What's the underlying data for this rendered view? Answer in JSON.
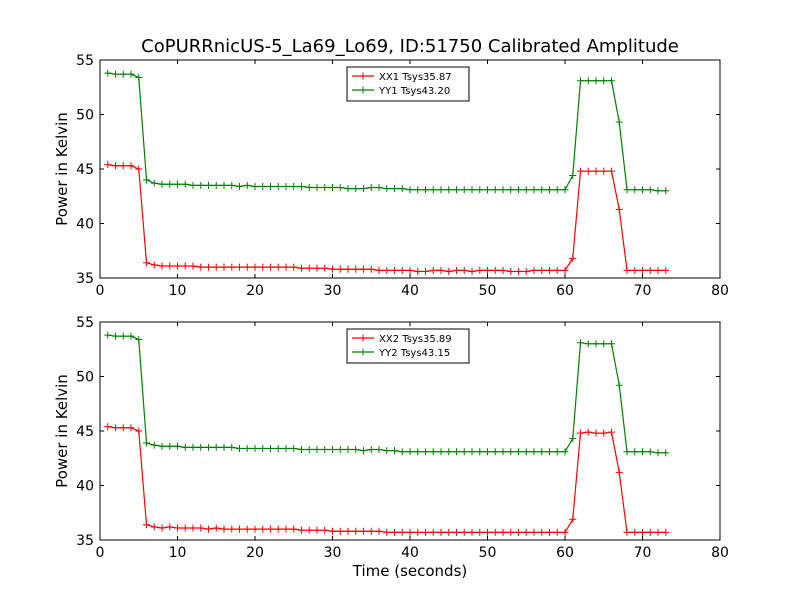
{
  "chart_data": [
    {
      "type": "line",
      "title": "CoPURRnicUS-5_La69_Lo69, ID:51750 Calibrated Amplitude",
      "xlabel": "",
      "ylabel": "Power in Kelvin",
      "xlim": [
        0,
        80
      ],
      "ylim": [
        35,
        55
      ],
      "xticks": [
        "0",
        "10",
        "20",
        "30",
        "40",
        "50",
        "60",
        "70",
        "80"
      ],
      "yticks": [
        "35",
        "40",
        "45",
        "50",
        "55"
      ],
      "grid": false,
      "legend_position": "top-center",
      "series": [
        {
          "name": "XX1 Tsys35.87",
          "color": "#ff0000",
          "x": [
            1,
            2,
            3,
            4,
            5,
            6,
            7,
            8,
            9,
            10,
            11,
            12,
            13,
            14,
            15,
            16,
            17,
            18,
            19,
            20,
            21,
            22,
            23,
            24,
            25,
            26,
            27,
            28,
            29,
            30,
            31,
            32,
            33,
            34,
            35,
            36,
            37,
            38,
            39,
            40,
            41,
            42,
            43,
            44,
            45,
            46,
            47,
            48,
            49,
            50,
            51,
            52,
            53,
            54,
            55,
            56,
            57,
            58,
            59,
            60,
            61,
            62,
            63,
            64,
            65,
            66,
            67,
            68,
            69,
            70,
            71,
            72,
            73
          ],
          "y": [
            45.4,
            45.3,
            45.3,
            45.3,
            45.0,
            36.4,
            36.2,
            36.1,
            36.1,
            36.1,
            36.1,
            36.1,
            36.0,
            36.0,
            36.0,
            36.0,
            36.0,
            36.0,
            36.0,
            36.0,
            36.0,
            36.0,
            36.0,
            36.0,
            36.0,
            35.9,
            35.9,
            35.9,
            35.9,
            35.8,
            35.8,
            35.8,
            35.8,
            35.8,
            35.8,
            35.7,
            35.7,
            35.7,
            35.7,
            35.7,
            35.6,
            35.6,
            35.7,
            35.7,
            35.6,
            35.7,
            35.7,
            35.6,
            35.7,
            35.7,
            35.7,
            35.7,
            35.6,
            35.6,
            35.6,
            35.7,
            35.7,
            35.7,
            35.7,
            35.7,
            36.8,
            44.8,
            44.8,
            44.8,
            44.8,
            44.8,
            41.3,
            35.7,
            35.7,
            35.7,
            35.7,
            35.7,
            35.7
          ]
        },
        {
          "name": "YY1 Tsys43.20",
          "color": "#008000",
          "x": [
            1,
            2,
            3,
            4,
            5,
            6,
            7,
            8,
            9,
            10,
            11,
            12,
            13,
            14,
            15,
            16,
            17,
            18,
            19,
            20,
            21,
            22,
            23,
            24,
            25,
            26,
            27,
            28,
            29,
            30,
            31,
            32,
            33,
            34,
            35,
            36,
            37,
            38,
            39,
            40,
            41,
            42,
            43,
            44,
            45,
            46,
            47,
            48,
            49,
            50,
            51,
            52,
            53,
            54,
            55,
            56,
            57,
            58,
            59,
            60,
            61,
            62,
            63,
            64,
            65,
            66,
            67,
            68,
            69,
            70,
            71,
            72,
            73
          ],
          "y": [
            53.8,
            53.7,
            53.7,
            53.7,
            53.4,
            44.0,
            43.7,
            43.6,
            43.6,
            43.6,
            43.6,
            43.5,
            43.5,
            43.5,
            43.5,
            43.5,
            43.5,
            43.4,
            43.5,
            43.4,
            43.4,
            43.4,
            43.4,
            43.4,
            43.4,
            43.4,
            43.3,
            43.3,
            43.3,
            43.3,
            43.3,
            43.2,
            43.2,
            43.2,
            43.3,
            43.3,
            43.2,
            43.2,
            43.2,
            43.1,
            43.1,
            43.1,
            43.1,
            43.1,
            43.1,
            43.1,
            43.1,
            43.1,
            43.1,
            43.1,
            43.1,
            43.1,
            43.1,
            43.1,
            43.1,
            43.1,
            43.1,
            43.1,
            43.1,
            43.1,
            44.4,
            53.1,
            53.1,
            53.1,
            53.1,
            53.1,
            49.3,
            43.1,
            43.1,
            43.1,
            43.1,
            43.0,
            43.0
          ]
        }
      ]
    },
    {
      "type": "line",
      "title": "",
      "xlabel": "Time (seconds)",
      "ylabel": "Power in Kelvin",
      "xlim": [
        0,
        80
      ],
      "ylim": [
        35,
        55
      ],
      "xticks": [
        "0",
        "10",
        "20",
        "30",
        "40",
        "50",
        "60",
        "70",
        "80"
      ],
      "yticks": [
        "35",
        "40",
        "45",
        "50",
        "55"
      ],
      "grid": false,
      "legend_position": "top-center",
      "series": [
        {
          "name": "XX2 Tsys35.89",
          "color": "#ff0000",
          "x": [
            1,
            2,
            3,
            4,
            5,
            6,
            7,
            8,
            9,
            10,
            11,
            12,
            13,
            14,
            15,
            16,
            17,
            18,
            19,
            20,
            21,
            22,
            23,
            24,
            25,
            26,
            27,
            28,
            29,
            30,
            31,
            32,
            33,
            34,
            35,
            36,
            37,
            38,
            39,
            40,
            41,
            42,
            43,
            44,
            45,
            46,
            47,
            48,
            49,
            50,
            51,
            52,
            53,
            54,
            55,
            56,
            57,
            58,
            59,
            60,
            61,
            62,
            63,
            64,
            65,
            66,
            67,
            68,
            69,
            70,
            71,
            72,
            73
          ],
          "y": [
            45.4,
            45.3,
            45.3,
            45.3,
            45.0,
            36.4,
            36.2,
            36.1,
            36.2,
            36.1,
            36.1,
            36.1,
            36.1,
            36.0,
            36.1,
            36.0,
            36.0,
            36.0,
            36.0,
            36.0,
            36.0,
            36.0,
            36.0,
            36.0,
            36.0,
            35.9,
            35.9,
            35.9,
            35.9,
            35.8,
            35.8,
            35.8,
            35.8,
            35.8,
            35.8,
            35.8,
            35.7,
            35.7,
            35.7,
            35.7,
            35.7,
            35.7,
            35.7,
            35.7,
            35.7,
            35.7,
            35.7,
            35.7,
            35.7,
            35.7,
            35.7,
            35.7,
            35.7,
            35.7,
            35.7,
            35.7,
            35.7,
            35.7,
            35.7,
            35.7,
            36.9,
            44.8,
            44.9,
            44.8,
            44.8,
            44.9,
            41.2,
            35.7,
            35.7,
            35.7,
            35.7,
            35.7,
            35.7
          ]
        },
        {
          "name": "YY2 Tsys43.15",
          "color": "#008000",
          "x": [
            1,
            2,
            3,
            4,
            5,
            6,
            7,
            8,
            9,
            10,
            11,
            12,
            13,
            14,
            15,
            16,
            17,
            18,
            19,
            20,
            21,
            22,
            23,
            24,
            25,
            26,
            27,
            28,
            29,
            30,
            31,
            32,
            33,
            34,
            35,
            36,
            37,
            38,
            39,
            40,
            41,
            42,
            43,
            44,
            45,
            46,
            47,
            48,
            49,
            50,
            51,
            52,
            53,
            54,
            55,
            56,
            57,
            58,
            59,
            60,
            61,
            62,
            63,
            64,
            65,
            66,
            67,
            68,
            69,
            70,
            71,
            72,
            73
          ],
          "y": [
            53.8,
            53.7,
            53.7,
            53.7,
            53.4,
            43.9,
            43.7,
            43.6,
            43.6,
            43.6,
            43.5,
            43.5,
            43.5,
            43.5,
            43.5,
            43.5,
            43.5,
            43.4,
            43.4,
            43.4,
            43.4,
            43.4,
            43.4,
            43.4,
            43.4,
            43.3,
            43.3,
            43.3,
            43.3,
            43.3,
            43.3,
            43.3,
            43.3,
            43.2,
            43.3,
            43.3,
            43.2,
            43.2,
            43.1,
            43.1,
            43.1,
            43.1,
            43.1,
            43.1,
            43.1,
            43.1,
            43.1,
            43.1,
            43.1,
            43.1,
            43.1,
            43.1,
            43.1,
            43.1,
            43.1,
            43.1,
            43.1,
            43.1,
            43.1,
            43.1,
            44.3,
            53.1,
            53.0,
            53.0,
            53.0,
            53.0,
            49.2,
            43.1,
            43.1,
            43.1,
            43.1,
            43.0,
            43.0
          ]
        }
      ]
    }
  ]
}
